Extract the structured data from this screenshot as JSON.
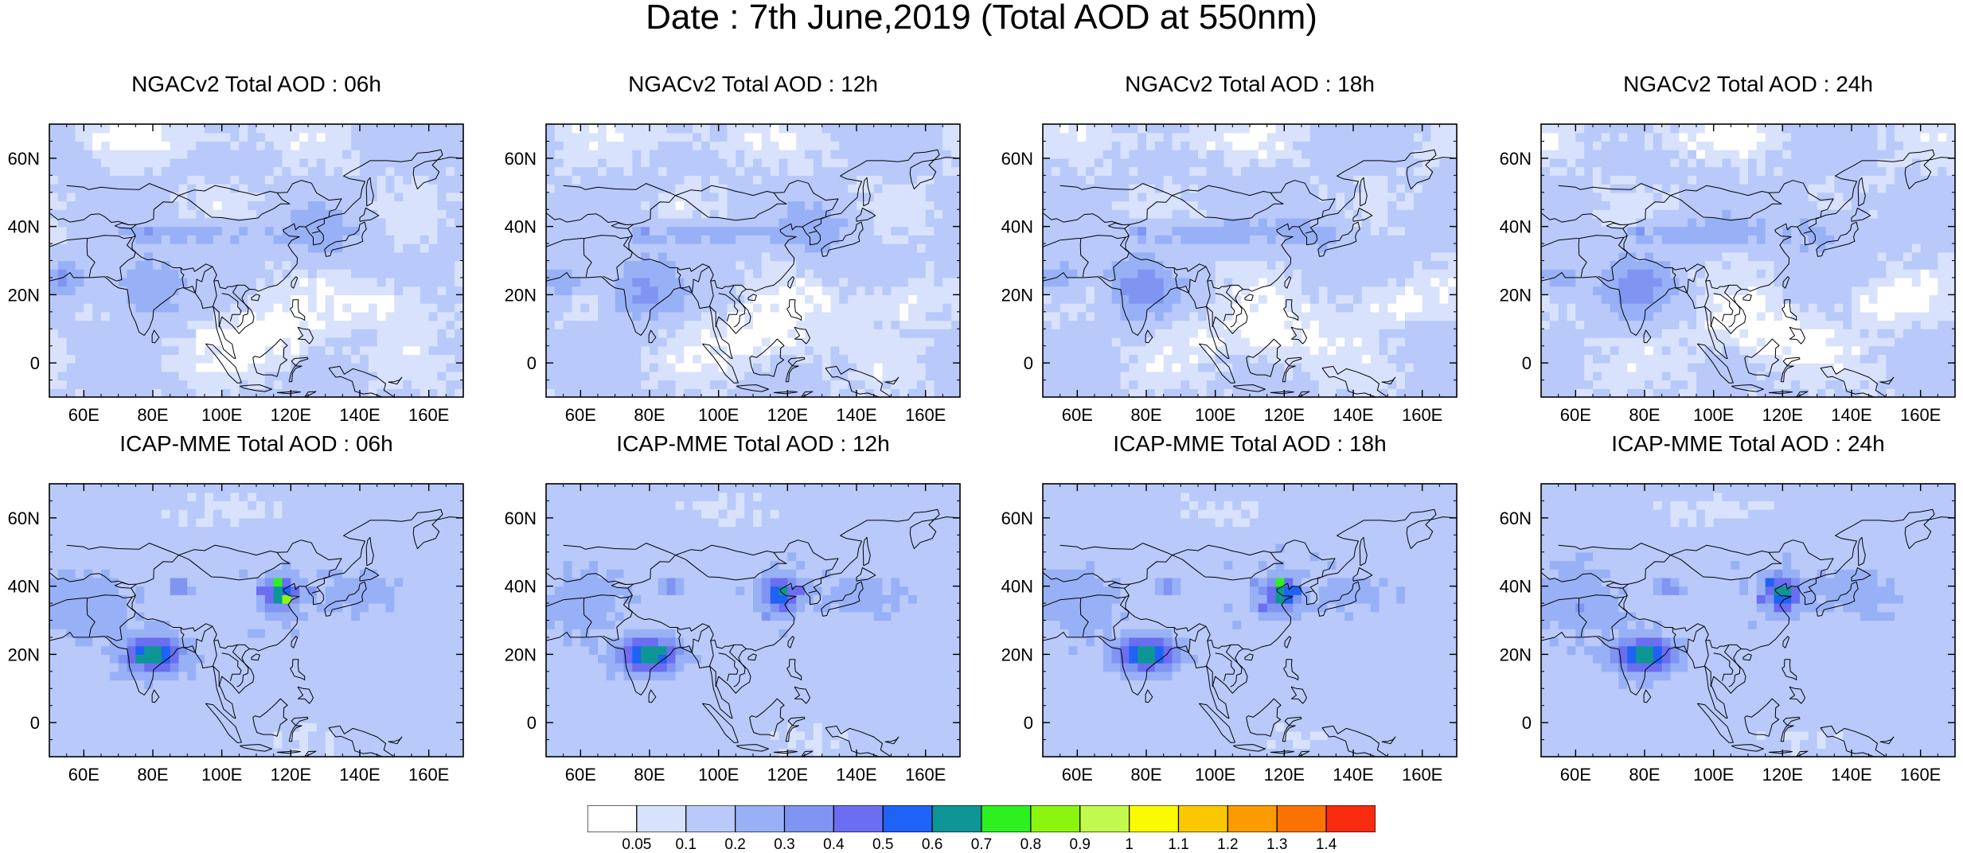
{
  "title": "Date : 7th June,2019 (Total AOD at 550nm)",
  "map_extent": {
    "lon": [
      50,
      170
    ],
    "lat": [
      -10,
      70
    ]
  },
  "lon_ticks": [
    {
      "value": 60,
      "label": "60E"
    },
    {
      "value": 80,
      "label": "80E"
    },
    {
      "value": 100,
      "label": "100E"
    },
    {
      "value": 120,
      "label": "120E"
    },
    {
      "value": 140,
      "label": "140E"
    },
    {
      "value": 160,
      "label": "160E"
    }
  ],
  "lat_ticks": [
    {
      "value": 60,
      "label": "60N"
    },
    {
      "value": 40,
      "label": "40N"
    },
    {
      "value": 20,
      "label": "20N"
    },
    {
      "value": 0,
      "label": "0"
    }
  ],
  "panels": [
    {
      "title": "NGACv2 Total AOD : 06h",
      "model": "ngac",
      "variant": 0
    },
    {
      "title": "NGACv2 Total AOD : 12h",
      "model": "ngac",
      "variant": 1
    },
    {
      "title": "NGACv2 Total AOD : 18h",
      "model": "ngac",
      "variant": 2
    },
    {
      "title": "NGACv2 Total AOD : 24h",
      "model": "ngac",
      "variant": 3
    },
    {
      "title": "ICAP-MME Total AOD : 06h",
      "model": "icap",
      "variant": 0
    },
    {
      "title": "ICAP-MME Total AOD : 12h",
      "model": "icap",
      "variant": 1
    },
    {
      "title": "ICAP-MME Total AOD : 18h",
      "model": "icap",
      "variant": 2
    },
    {
      "title": "ICAP-MME Total AOD : 24h",
      "model": "icap",
      "variant": 3
    }
  ],
  "colorbar": {
    "labels": [
      "0.05",
      "0.1",
      "0.2",
      "0.3",
      "0.4",
      "0.5",
      "0.6",
      "0.7",
      "0.8",
      "0.9",
      "1",
      "1.1",
      "1.2",
      "1.3",
      "1.4"
    ],
    "colors": [
      "#ffffff",
      "#d8e2fc",
      "#b8c9fa",
      "#98b0f6",
      "#8095f2",
      "#6b6ef0",
      "#1f62f6",
      "#0e9696",
      "#2ef021",
      "#8cf510",
      "#c2f94e",
      "#fafa00",
      "#fac800",
      "#fa9b00",
      "#fa7300",
      "#fa2c10"
    ]
  }
}
